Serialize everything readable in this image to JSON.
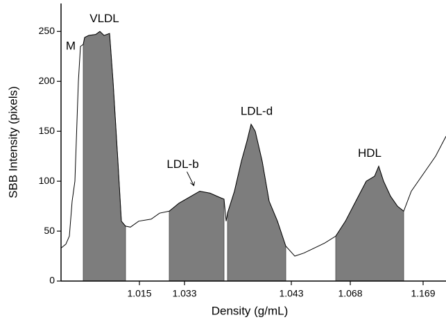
{
  "chart_data": {
    "type": "line",
    "x_label": "Density (g/mL)",
    "y_label": "SBB Intensity (pixels)",
    "x": [
      0,
      7,
      12,
      16,
      20,
      25,
      28,
      32,
      34,
      40,
      50,
      56,
      62,
      70,
      75,
      82,
      87,
      93,
      100,
      112,
      130,
      142,
      156,
      170,
      185,
      200,
      215,
      228,
      235,
      238,
      240,
      250,
      260,
      268,
      274,
      280,
      290,
      300,
      312,
      324,
      337,
      350,
      362,
      380,
      396,
      410,
      425,
      440,
      452,
      458,
      465,
      475,
      485,
      494,
      505,
      515,
      525,
      540,
      555
    ],
    "values": [
      33,
      37,
      45,
      80,
      100,
      200,
      235,
      237,
      244,
      246,
      247,
      250,
      246,
      248,
      200,
      120,
      60,
      55,
      54,
      60,
      62,
      68,
      70,
      78,
      84,
      90,
      88,
      84,
      82,
      60,
      68,
      90,
      120,
      140,
      157,
      150,
      120,
      80,
      60,
      35,
      25,
      28,
      32,
      38,
      45,
      60,
      80,
      100,
      105,
      115,
      100,
      85,
      75,
      70,
      90,
      100,
      110,
      125,
      145
    ],
    "color": "#000000",
    "fill_color": "#7d7d7d",
    "regions": [
      {
        "label": "VLDL",
        "x": [
          32,
          93
        ]
      },
      {
        "label": "LDL-b",
        "x": [
          156,
          235
        ]
      },
      {
        "label": "LDL-d",
        "x": [
          240,
          324
        ]
      },
      {
        "label": "HDL",
        "x": [
          396,
          494
        ]
      }
    ],
    "annotations": [
      {
        "text": "M",
        "x": 14,
        "y": 235
      }
    ],
    "xlim": [
      0,
      555
    ],
    "ylim": [
      0,
      278
    ],
    "xticks": [
      {
        "value": 113,
        "label": "1.015"
      },
      {
        "value": 178,
        "label": "1.033"
      },
      {
        "value": 332,
        "label": "1.043"
      },
      {
        "value": 417,
        "label": "1.068"
      },
      {
        "value": 522,
        "label": "1.169"
      }
    ],
    "yticks": [
      0,
      50,
      100,
      150,
      200,
      250
    ]
  }
}
